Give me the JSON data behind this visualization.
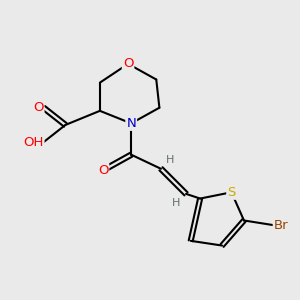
{
  "background_color": "#eaeaea",
  "atom_colors": {
    "C": "#000000",
    "N": "#0000cc",
    "O": "#ff0000",
    "S": "#ccaa00",
    "Br": "#994400",
    "H": "#607070"
  },
  "bond_color": "#000000",
  "bond_width": 1.5,
  "font_size": 8.5,
  "fig_size": [
    3.0,
    3.0
  ],
  "dpi": 100
}
